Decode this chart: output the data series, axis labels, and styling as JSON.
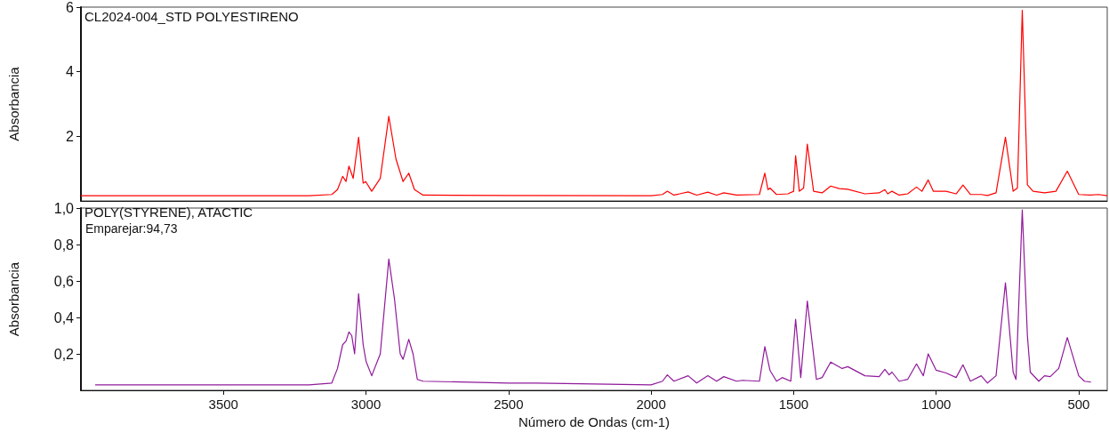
{
  "chart_data": [
    {
      "type": "line",
      "title": "CL2024-004_STD POLYESTIRENO",
      "ylabel": "Absorbancia",
      "color": "#ff0000",
      "xlim": [
        4000,
        400
      ],
      "ylim": [
        0,
        6
      ],
      "yticks": [
        2,
        4,
        6
      ],
      "tick_labels": "y",
      "x": [
        4000,
        3500,
        3200,
        3120,
        3100,
        3082,
        3070,
        3060,
        3045,
        3026,
        3010,
        3001,
        2980,
        2950,
        2920,
        2895,
        2870,
        2850,
        2830,
        2800,
        2500,
        2000,
        1960,
        1943,
        1920,
        1870,
        1840,
        1801,
        1770,
        1745,
        1700,
        1620,
        1601,
        1590,
        1583,
        1560,
        1520,
        1500,
        1493,
        1480,
        1465,
        1452,
        1430,
        1400,
        1370,
        1340,
        1310,
        1250,
        1200,
        1180,
        1170,
        1155,
        1130,
        1100,
        1069,
        1050,
        1028,
        1010,
        965,
        930,
        906,
        880,
        842,
        820,
        790,
        757,
        730,
        715,
        698,
        680,
        660,
        620,
        580,
        540,
        500,
        460,
        430,
        400
      ],
      "values": [
        0.16,
        0.16,
        0.16,
        0.2,
        0.35,
        0.76,
        0.6,
        1.08,
        0.7,
        1.97,
        0.55,
        0.6,
        0.3,
        0.7,
        2.62,
        1.3,
        0.6,
        0.86,
        0.35,
        0.18,
        0.17,
        0.16,
        0.2,
        0.3,
        0.18,
        0.28,
        0.18,
        0.27,
        0.18,
        0.25,
        0.18,
        0.2,
        0.86,
        0.35,
        0.4,
        0.2,
        0.22,
        0.3,
        1.4,
        0.3,
        0.4,
        1.76,
        0.3,
        0.25,
        0.46,
        0.38,
        0.36,
        0.22,
        0.25,
        0.35,
        0.22,
        0.3,
        0.18,
        0.22,
        0.43,
        0.3,
        0.65,
        0.3,
        0.3,
        0.22,
        0.49,
        0.2,
        0.2,
        0.17,
        0.25,
        1.97,
        0.3,
        0.4,
        5.9,
        0.5,
        0.3,
        0.25,
        0.3,
        0.92,
        0.2,
        0.18,
        0.2,
        0.16
      ]
    },
    {
      "type": "line",
      "title": "POLY(STYRENE), ATACTIC",
      "annotations": [
        "Emparejar:94,73"
      ],
      "xlabel": "Número de Ondas (cm-1)",
      "ylabel": "Absorbancia",
      "color": "#90199a",
      "xlim": [
        4000,
        400
      ],
      "xticks": [
        3500,
        3000,
        2500,
        2000,
        1500,
        1000,
        500
      ],
      "ylim": [
        0,
        1.0
      ],
      "yticks": [
        {
          "value": 0.2,
          "label": "0,2"
        },
        {
          "value": 0.4,
          "label": "0,4"
        },
        {
          "value": 0.6,
          "label": "0,6"
        },
        {
          "value": 0.8,
          "label": "0,8"
        },
        {
          "value": 1.0,
          "label": "1,0"
        }
      ],
      "x": [
        3950,
        3700,
        3500,
        3200,
        3120,
        3100,
        3082,
        3070,
        3060,
        3050,
        3040,
        3026,
        3010,
        3000,
        2980,
        2950,
        2920,
        2900,
        2880,
        2870,
        2850,
        2835,
        2820,
        2800,
        2500,
        2400,
        2000,
        1960,
        1943,
        1920,
        1870,
        1840,
        1801,
        1770,
        1745,
        1700,
        1680,
        1620,
        1601,
        1583,
        1560,
        1540,
        1510,
        1493,
        1475,
        1452,
        1420,
        1400,
        1370,
        1330,
        1310,
        1250,
        1200,
        1180,
        1165,
        1155,
        1130,
        1100,
        1069,
        1045,
        1028,
        1000,
        965,
        930,
        906,
        880,
        842,
        820,
        790,
        757,
        730,
        720,
        698,
        680,
        670,
        640,
        620,
        600,
        570,
        540,
        500,
        480,
        457
      ],
      "values": [
        0.03,
        0.03,
        0.03,
        0.03,
        0.04,
        0.12,
        0.25,
        0.27,
        0.32,
        0.3,
        0.2,
        0.53,
        0.25,
        0.16,
        0.08,
        0.2,
        0.72,
        0.5,
        0.2,
        0.17,
        0.28,
        0.2,
        0.06,
        0.05,
        0.04,
        0.04,
        0.03,
        0.05,
        0.085,
        0.05,
        0.08,
        0.04,
        0.08,
        0.05,
        0.075,
        0.05,
        0.055,
        0.05,
        0.24,
        0.11,
        0.05,
        0.07,
        0.05,
        0.39,
        0.07,
        0.49,
        0.06,
        0.07,
        0.155,
        0.12,
        0.13,
        0.08,
        0.075,
        0.115,
        0.085,
        0.1,
        0.05,
        0.06,
        0.145,
        0.08,
        0.2,
        0.11,
        0.095,
        0.07,
        0.14,
        0.05,
        0.08,
        0.04,
        0.08,
        0.59,
        0.1,
        0.06,
        0.99,
        0.3,
        0.1,
        0.05,
        0.08,
        0.075,
        0.12,
        0.29,
        0.08,
        0.05,
        0.045
      ]
    }
  ]
}
